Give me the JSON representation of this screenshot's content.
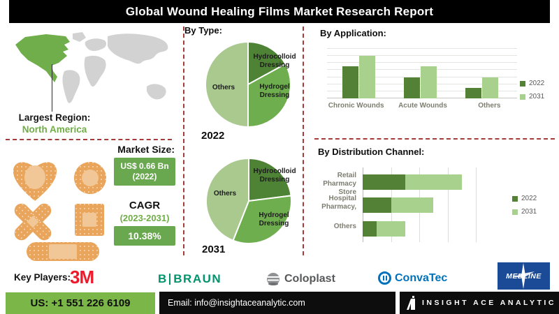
{
  "title": "Global Wound Healing Films Market Research Report",
  "region": {
    "label": "Largest Region:",
    "value": "North America"
  },
  "market": {
    "label": "Market Size:",
    "size_line1": "US$ 0.66 Bn",
    "size_line2": "(2022)",
    "cagr_label": "CAGR",
    "cagr_period": "(2023-2031)",
    "cagr_value": "10.38%"
  },
  "key_players": {
    "label": "Key Players:",
    "m3": "3M",
    "braun_b": "B",
    "braun_name": "BRAUN",
    "coloplast": "Coloplast",
    "convatec": "ConvaTec",
    "medline": "MEDLINE"
  },
  "footer": {
    "phone": "US: +1 551 226 6109",
    "email": "Email: info@insightaceanalytic.com",
    "brand": "INSIGHT ACE ANALYTIC"
  },
  "colors": {
    "title_bar": "#000000",
    "accent_green": "#70ad47",
    "series_2022": "#538135",
    "series_2031": "#a9d18e",
    "pie_dark": "#4e8234",
    "pie_mid": "#6fae4e",
    "pie_light": "#a9c98f",
    "map_highlight": "#6fae4b",
    "map_base": "#d2d2d2",
    "divider_red": "#a33c38",
    "value_box_green": "#6aa84f",
    "footer_green": "#7ab648",
    "bandage_orange": "#e9a55b",
    "bandage_pad": "#f2c797",
    "logo_3m_red": "#ee1b2d",
    "logo_braun_green": "#00946c",
    "logo_coloplast_gray": "#57585a",
    "logo_convatec_blue": "#0072bc",
    "logo_medline_blue": "#1b4a97"
  },
  "chart_data": [
    {
      "id": "by_type_2022",
      "type": "pie",
      "title": "By Type:",
      "year_label": "2022",
      "labels": [
        "Hydrocolloid Dressing",
        "Hydrogel Dressing",
        "Others"
      ],
      "values": [
        17,
        33,
        50
      ],
      "colors": [
        "#4e8234",
        "#6fae4e",
        "#a9c98f"
      ]
    },
    {
      "id": "by_type_2031",
      "type": "pie",
      "title": "By Type:",
      "year_label": "2031",
      "labels": [
        "Hydrocolloid Dressing",
        "Hydrogel Dressing",
        "Others"
      ],
      "values": [
        23,
        33,
        44
      ],
      "colors": [
        "#4e8234",
        "#6fae4e",
        "#a9c98f"
      ]
    },
    {
      "id": "by_application",
      "type": "bar",
      "title": "By Application:",
      "categories": [
        "Chronic Wounds",
        "Acute Wounds",
        "Others"
      ],
      "series": [
        {
          "name": "2022",
          "color": "#538135",
          "values": [
            4.5,
            3,
            1.5
          ]
        },
        {
          "name": "2031",
          "color": "#a9d18e",
          "values": [
            6,
            4.5,
            3
          ]
        }
      ],
      "ylim": [
        0,
        7
      ],
      "grid": true,
      "legend_position": "right"
    },
    {
      "id": "by_distribution_channel",
      "type": "bar-horizontal-stacked",
      "title": "By Distribution Channel:",
      "categories": [
        "Retail Pharmacy Store",
        "Hospital Pharmacy,",
        "Others"
      ],
      "series": [
        {
          "name": "2022",
          "color": "#538135",
          "values": [
            1.5,
            1.0,
            0.5
          ]
        },
        {
          "name": "2031",
          "color": "#a9d18e",
          "values": [
            2.0,
            1.5,
            1.0
          ]
        }
      ],
      "xlim": [
        0,
        4
      ],
      "grid": true,
      "legend_position": "right"
    }
  ]
}
